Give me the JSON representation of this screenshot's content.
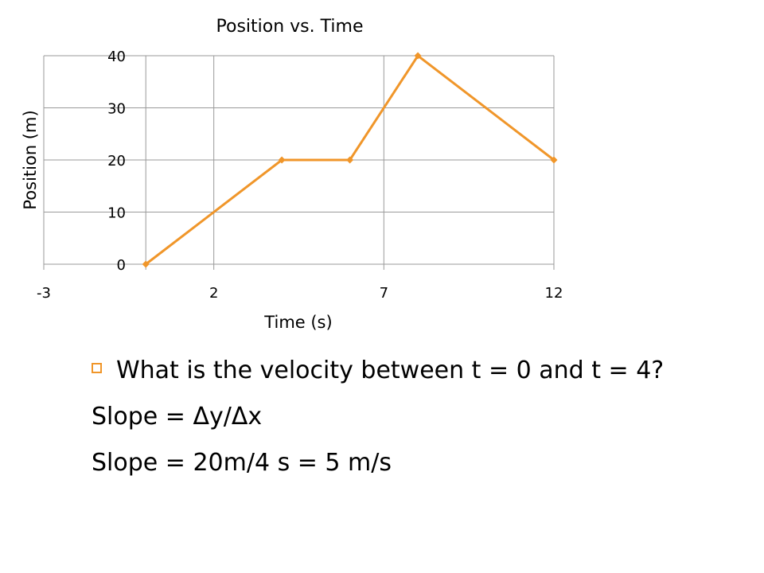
{
  "chart_data": {
    "type": "line",
    "title": "Position vs. Time",
    "xlabel": "Time (s)",
    "ylabel": "Position (m)",
    "xlim": [
      -3,
      12
    ],
    "ylim": [
      0,
      40
    ],
    "x_ticks": [
      -3,
      2,
      7,
      12
    ],
    "y_ticks": [
      0,
      10,
      20,
      30,
      40
    ],
    "grid": true,
    "series": [
      {
        "x": [
          0,
          4,
          6,
          8,
          12
        ],
        "values": [
          0,
          20,
          20,
          40,
          20
        ],
        "color": "#f0962a",
        "marker": "diamond"
      }
    ]
  },
  "content": {
    "question": "What is the velocity between t = 0 and t = 4?",
    "slope_formula": "Slope = Δy/Δx",
    "slope_result": "Slope = 20m/4 s = 5 m/s"
  },
  "colors": {
    "accent": "#f0962a",
    "grid": "#9a9a9a"
  },
  "icons": {
    "bullet": "hollow-square-bullet-icon"
  }
}
